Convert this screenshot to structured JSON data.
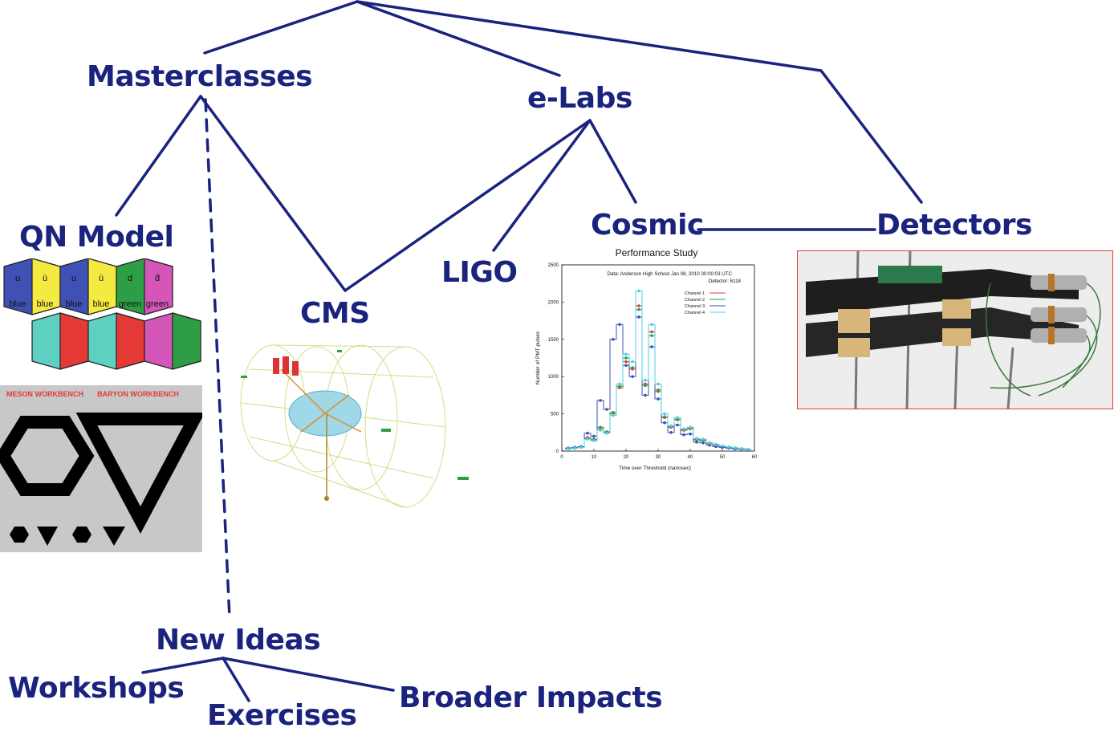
{
  "colors": {
    "ink": "#1a237e",
    "quark_blue": "#3f51b5",
    "quark_yellow": "#f5ea42",
    "quark_green": "#2e9e46",
    "quark_magenta": "#d356b8",
    "quark_cyan": "#5ed0c2",
    "quark_red": "#e53935",
    "channel_1": "#e53935",
    "channel_2": "#2e9e46",
    "channel_3": "#3f51b5",
    "channel_4": "#4dd0e1"
  },
  "nodes": {
    "masterclasses": "Masterclasses",
    "elabs": "e-Labs",
    "qn_model": "QN Model",
    "cms": "CMS",
    "ligo": "LIGO",
    "cosmic": "Cosmic",
    "detectors": "Detectors",
    "new_ideas": "New Ideas",
    "workshops": "Workshops",
    "exercises": "Exercises",
    "broader_impacts": "Broader Impacts"
  },
  "qn_model_panel": {
    "hex_tiles": [
      {
        "quark": "u",
        "color": "blue"
      },
      {
        "quark": "ū",
        "color": "blue"
      },
      {
        "quark": "u",
        "color": "blue"
      },
      {
        "quark": "ū",
        "color": "blue"
      },
      {
        "quark": "d",
        "color": "green"
      },
      {
        "quark": "d̄",
        "color": "green"
      }
    ],
    "workbench": {
      "left_title": "MESON WORKBENCH",
      "right_title": "BARYON WORKBENCH"
    }
  },
  "chart_data": {
    "type": "line",
    "title": "Performance Study",
    "subtitle": "Data: Anderson High School Jan 08, 2010 00:00:03 UTC",
    "detector_label": "Detector: 6118",
    "xlabel": "Time over Threshold (nanosec)",
    "ylabel": "Number of PMT pulses",
    "xlim": [
      0,
      60
    ],
    "ylim": [
      0,
      2500
    ],
    "xticks": [
      "0",
      "10",
      "20",
      "30",
      "40",
      "50",
      "60"
    ],
    "yticks": [
      "0",
      "500",
      "1000",
      "1500",
      "2000",
      "2500"
    ],
    "legend_position": "top-right",
    "x": [
      2,
      4,
      6,
      8,
      10,
      12,
      14,
      16,
      18,
      20,
      22,
      24,
      26,
      28,
      30,
      32,
      34,
      36,
      38,
      40,
      42,
      44,
      46,
      48,
      50,
      52,
      54,
      56,
      58
    ],
    "series": [
      {
        "name": "Channel 1",
        "values": [
          30,
          40,
          50,
          180,
          150,
          300,
          250,
          500,
          850,
          1200,
          1100,
          1950,
          900,
          1600,
          820,
          450,
          320,
          420,
          280,
          300,
          150,
          150,
          100,
          80,
          60,
          50,
          40,
          30,
          20
        ]
      },
      {
        "name": "Channel 2",
        "values": [
          30,
          40,
          50,
          170,
          160,
          320,
          260,
          520,
          870,
          1250,
          1120,
          1900,
          880,
          1550,
          800,
          460,
          330,
          430,
          290,
          310,
          160,
          140,
          110,
          90,
          60,
          50,
          40,
          30,
          20
        ]
      },
      {
        "name": "Channel 3",
        "values": [
          40,
          50,
          60,
          240,
          200,
          680,
          560,
          1500,
          1700,
          1150,
          1000,
          1800,
          750,
          1400,
          700,
          380,
          250,
          350,
          220,
          230,
          120,
          110,
          80,
          60,
          50,
          40,
          30,
          25,
          20
        ]
      },
      {
        "name": "Channel 4",
        "values": [
          30,
          40,
          50,
          160,
          140,
          280,
          240,
          480,
          900,
          1300,
          1200,
          2150,
          950,
          1700,
          900,
          500,
          340,
          450,
          300,
          320,
          170,
          160,
          110,
          90,
          70,
          55,
          45,
          35,
          25
        ]
      }
    ]
  }
}
